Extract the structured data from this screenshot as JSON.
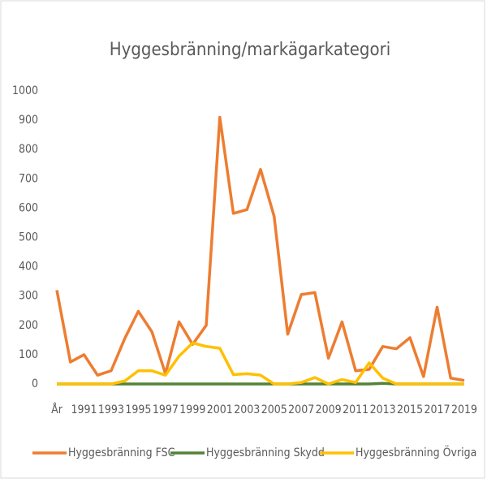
{
  "chart_data": {
    "type": "line",
    "title": "Hyggesbränning/markägarkategori",
    "categories": [
      "År",
      null,
      "1991",
      null,
      "1993",
      null,
      "1995",
      null,
      "1997",
      null,
      "1999",
      null,
      "2001",
      null,
      "2003",
      null,
      "2005",
      null,
      "2007",
      null,
      "2009",
      null,
      "2011",
      null,
      "2013",
      null,
      "2015",
      null,
      "2017",
      null,
      "2019"
    ],
    "series": [
      {
        "name": "Hyggesbränning FSC",
        "color": "#ed7d31",
        "values": [
          320,
          75,
          100,
          30,
          45,
          155,
          248,
          178,
          35,
          212,
          135,
          200,
          910,
          582,
          595,
          732,
          572,
          170,
          305,
          312,
          88,
          212,
          45,
          50,
          128,
          120,
          158,
          25,
          262,
          20,
          12
        ]
      },
      {
        "name": "Hyggesbränning Skydd",
        "color": "#548235",
        "values": [
          0,
          0,
          0,
          0,
          0,
          0,
          0,
          0,
          0,
          0,
          0,
          0,
          0,
          0,
          0,
          0,
          0,
          0,
          0,
          0,
          0,
          0,
          0,
          0,
          2,
          0,
          0,
          0,
          0,
          0,
          0
        ]
      },
      {
        "name": "Hyggesbränning Övriga",
        "color": "#ffc000",
        "values": [
          0,
          0,
          0,
          0,
          0,
          10,
          45,
          45,
          30,
          95,
          140,
          128,
          122,
          32,
          35,
          30,
          0,
          0,
          5,
          22,
          0,
          15,
          5,
          72,
          20,
          0,
          0,
          0,
          0,
          0,
          0
        ]
      }
    ],
    "ylim": [
      0,
      1000
    ],
    "yticks": [
      0,
      100,
      200,
      300,
      400,
      500,
      600,
      700,
      800,
      900,
      1000
    ],
    "grid": false,
    "legend": "bottom"
  }
}
